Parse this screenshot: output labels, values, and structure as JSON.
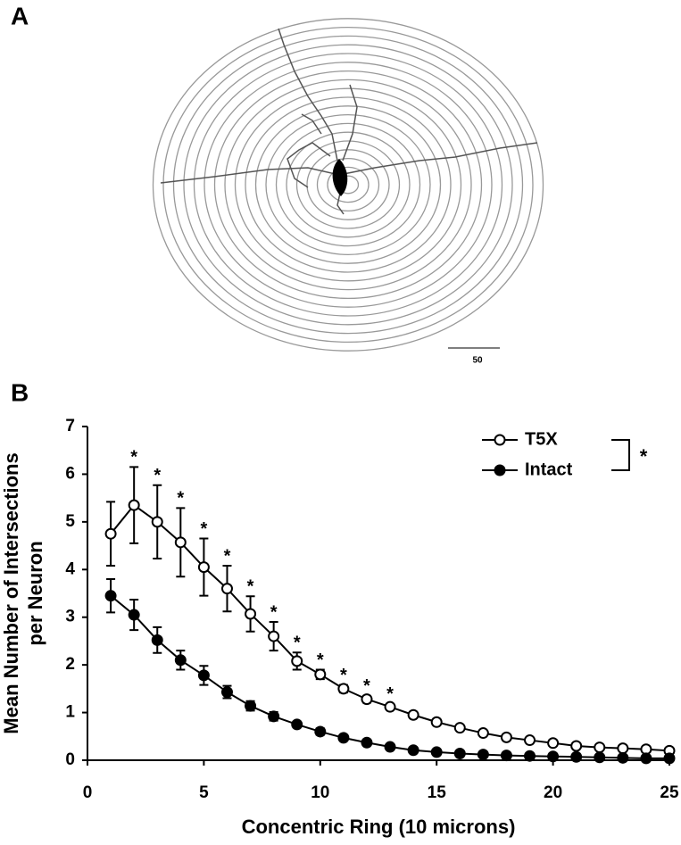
{
  "panel_a": {
    "label": "A",
    "scale_bar_label": "50"
  },
  "chart_data": {
    "type": "line",
    "panel_label": "B",
    "xlabel": "Concentric Ring (10 microns)",
    "ylabel_lines": [
      "Mean Number of Intersections",
      "per Neuron"
    ],
    "x": [
      1,
      2,
      3,
      4,
      5,
      6,
      7,
      8,
      9,
      10,
      11,
      12,
      13,
      14,
      15,
      16,
      17,
      18,
      19,
      20,
      21,
      22,
      23,
      24,
      25
    ],
    "series": [
      {
        "name": "T5X",
        "color": "#000000",
        "marker": "open",
        "values": [
          4.75,
          5.35,
          5.0,
          4.57,
          4.05,
          3.6,
          3.07,
          2.6,
          2.08,
          1.8,
          1.5,
          1.28,
          1.12,
          0.95,
          0.8,
          0.68,
          0.57,
          0.48,
          0.42,
          0.36,
          0.3,
          0.27,
          0.25,
          0.23,
          0.2
        ],
        "errors": [
          0.67,
          0.8,
          0.77,
          0.72,
          0.6,
          0.48,
          0.37,
          0.3,
          0.18,
          0.1,
          0.08,
          0.07,
          0.06,
          0.03,
          0.03,
          0.03,
          0.02,
          0.02,
          0.02,
          0.02,
          0.02,
          0.02,
          0.02,
          0.02,
          0.02
        ]
      },
      {
        "name": "Intact",
        "color": "#000000",
        "marker": "filled",
        "values": [
          3.45,
          3.05,
          2.52,
          2.1,
          1.78,
          1.43,
          1.14,
          0.92,
          0.75,
          0.6,
          0.47,
          0.37,
          0.28,
          0.21,
          0.17,
          0.14,
          0.12,
          0.1,
          0.09,
          0.08,
          0.07,
          0.06,
          0.05,
          0.04,
          0.04
        ],
        "errors": [
          0.35,
          0.32,
          0.27,
          0.2,
          0.2,
          0.13,
          0.1,
          0.09,
          0.06,
          0.07,
          0.05,
          0.04,
          0.03,
          0.02,
          0.02,
          0.02,
          0.02,
          0.02,
          0.02,
          0.02,
          0.02,
          0.02,
          0.02,
          0.02,
          0.02
        ]
      }
    ],
    "annotations": [
      {
        "x": 2,
        "text": "*"
      },
      {
        "x": 3,
        "text": "*"
      },
      {
        "x": 4,
        "text": "*"
      },
      {
        "x": 5,
        "text": "*"
      },
      {
        "x": 6,
        "text": "*"
      },
      {
        "x": 7,
        "text": "*"
      },
      {
        "x": 8,
        "text": "*"
      },
      {
        "x": 9,
        "text": "*"
      },
      {
        "x": 10,
        "text": "*"
      },
      {
        "x": 11,
        "text": "*"
      },
      {
        "x": 12,
        "text": "*"
      },
      {
        "x": 13,
        "text": "*"
      }
    ],
    "legend_annotation": "*",
    "legend": "upper right",
    "xlim": [
      0,
      25
    ],
    "xticks": [
      0,
      5,
      10,
      15,
      20,
      25
    ],
    "ylim": [
      0,
      7
    ],
    "yticks": [
      0,
      1,
      2,
      3,
      4,
      5,
      6,
      7
    ]
  }
}
